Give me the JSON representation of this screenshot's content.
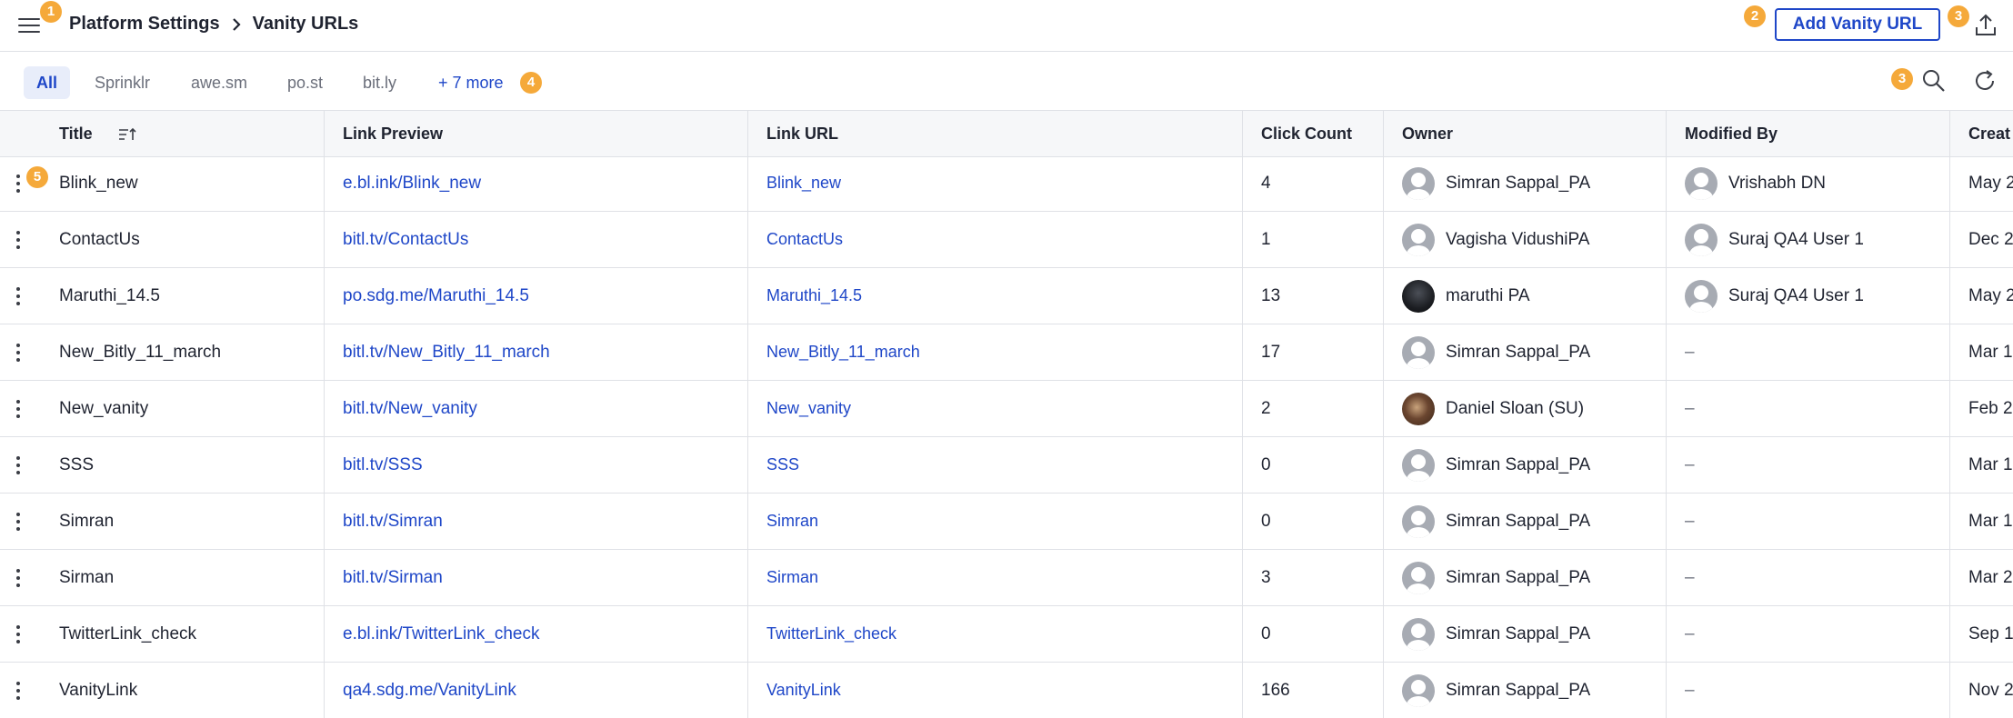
{
  "header": {
    "breadcrumb_parent": "Platform Settings",
    "breadcrumb_current": "Vanity URLs",
    "add_button_label": "Add Vanity URL",
    "menu_icon": "hamburger-menu-icon",
    "export_icon": "upload-icon",
    "accent_color": "#1f47c8"
  },
  "badges": {
    "menu": "1",
    "add": "2",
    "export": "3",
    "search": "3",
    "more": "4",
    "row_menu": "5",
    "badge_color": "#f5a93a"
  },
  "filters": {
    "chips": [
      "All",
      "Sprinklr",
      "awe.sm",
      "po.st",
      "bit.ly"
    ],
    "more_label": "+ 7 more",
    "active": "All"
  },
  "table": {
    "columns": [
      "Title",
      "Link Preview",
      "Link URL",
      "Click Count",
      "Owner",
      "Modified By",
      "Creat"
    ],
    "rows": [
      {
        "title": "Blink_new",
        "preview": "e.bl.ink/Blink_new",
        "url": "Blink_new",
        "clicks": "4",
        "owner": "Simran Sappal_PA",
        "owner_avatar": "generic",
        "modified_by": "Vrishabh DN",
        "modified_avatar": "generic",
        "created": "May 2"
      },
      {
        "title": "ContactUs",
        "preview": "bitl.tv/ContactUs",
        "url": "ContactUs",
        "clicks": "1",
        "owner": "Vagisha VidushiPA",
        "owner_avatar": "generic",
        "modified_by": "Suraj QA4 User 1",
        "modified_avatar": "generic",
        "created": "Dec 2"
      },
      {
        "title": "Maruthi_14.5",
        "preview": "po.sdg.me/Maruthi_14.5",
        "url": "Maruthi_14.5",
        "clicks": "13",
        "owner": "maruthi PA",
        "owner_avatar": "dark",
        "modified_by": "Suraj QA4 User 1",
        "modified_avatar": "generic",
        "created": "May 2"
      },
      {
        "title": "New_Bitly_11_march",
        "preview": "bitl.tv/New_Bitly_11_march",
        "url": "New_Bitly_11_march",
        "clicks": "17",
        "owner": "Simran Sappal_PA",
        "owner_avatar": "generic",
        "modified_by": "–",
        "modified_avatar": "",
        "created": "Mar 1"
      },
      {
        "title": "New_vanity",
        "preview": "bitl.tv/New_vanity",
        "url": "New_vanity",
        "clicks": "2",
        "owner": "Daniel Sloan (SU)",
        "owner_avatar": "brown",
        "modified_by": "–",
        "modified_avatar": "",
        "created": "Feb 2"
      },
      {
        "title": "SSS",
        "preview": "bitl.tv/SSS",
        "url": "SSS",
        "clicks": "0",
        "owner": "Simran Sappal_PA",
        "owner_avatar": "generic",
        "modified_by": "–",
        "modified_avatar": "",
        "created": "Mar 1"
      },
      {
        "title": "Simran",
        "preview": "bitl.tv/Simran",
        "url": "Simran",
        "clicks": "0",
        "owner": "Simran Sappal_PA",
        "owner_avatar": "generic",
        "modified_by": "–",
        "modified_avatar": "",
        "created": "Mar 1"
      },
      {
        "title": "Sirman",
        "preview": "bitl.tv/Sirman",
        "url": "Sirman",
        "clicks": "3",
        "owner": "Simran Sappal_PA",
        "owner_avatar": "generic",
        "modified_by": "–",
        "modified_avatar": "",
        "created": "Mar 2"
      },
      {
        "title": "TwitterLink_check",
        "preview": "e.bl.ink/TwitterLink_check",
        "url": "TwitterLink_check",
        "clicks": "0",
        "owner": "Simran Sappal_PA",
        "owner_avatar": "generic",
        "modified_by": "–",
        "modified_avatar": "",
        "created": "Sep 1"
      },
      {
        "title": "VanityLink",
        "preview": "qa4.sdg.me/VanityLink",
        "url": "VanityLink",
        "clicks": "166",
        "owner": "Simran Sappal_PA",
        "owner_avatar": "generic",
        "modified_by": "–",
        "modified_avatar": "",
        "created": "Nov 2"
      }
    ]
  }
}
